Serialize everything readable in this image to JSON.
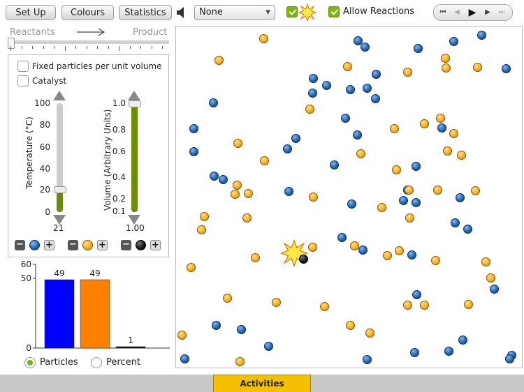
{
  "toolbar": {
    "setup_label": "Set Up",
    "colours_label": "Colours",
    "statistics_label": "Statistics",
    "speaker_icon": "speaker-icon",
    "select_value": "None",
    "explosion_checkbox_checked": true,
    "allow_reactions_label": "Allow Reactions",
    "allow_reactions_checked": true
  },
  "player": {
    "icons": [
      "skip-start-icon",
      "step-back-icon",
      "play-icon",
      "step-forward-icon",
      "skip-end-icon"
    ]
  },
  "reaction": {
    "reactants_label": "Reactants",
    "product_label": "Product",
    "slider_value": 0
  },
  "controls": {
    "fixed_particles_label": "Fixed particles per unit volume",
    "fixed_particles_checked": false,
    "catalyst_label": "Catalyst",
    "catalyst_checked": false,
    "temperature": {
      "label": "Temperature (°C)",
      "ticks": [
        "100",
        "80",
        "60",
        "40",
        "20",
        "0"
      ],
      "value": "21",
      "level": 0.21
    },
    "volume": {
      "label": "Volume (Arbitrary Units)",
      "ticks": [
        "1.0",
        "0.8",
        "0.6",
        "0.4",
        "0.2",
        "0.1"
      ],
      "value": "1.00",
      "level": 1.0
    }
  },
  "chart_data": {
    "type": "bar",
    "categories": [
      "blue",
      "orange",
      "black"
    ],
    "values": [
      49,
      49,
      1
    ],
    "colors": [
      "#0000ff",
      "#ff7f00",
      "#111111"
    ],
    "ylim": [
      0,
      60
    ],
    "yticks": [
      "0",
      "50",
      "60"
    ],
    "labels": [
      "49",
      "49",
      "1"
    ]
  },
  "display_mode": {
    "particles_label": "Particles",
    "percent_label": "Percent",
    "selected": "Particles"
  },
  "activities_label": "Activities",
  "colors": {
    "accent_green": "#7ab800",
    "activities_yellow": "#f5c000",
    "blue_particle": "#1c5fb0",
    "orange_particle": "#f7a91c"
  }
}
